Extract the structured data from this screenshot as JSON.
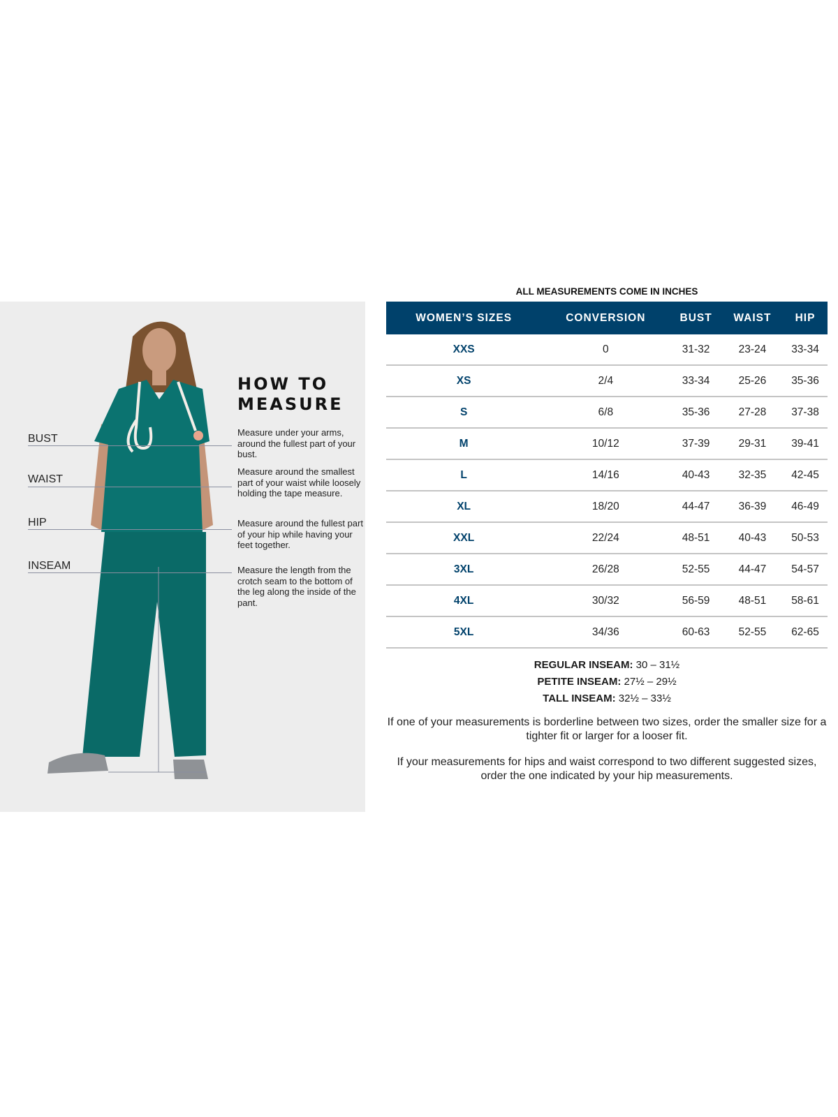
{
  "how_to_measure": {
    "title_line1": "HOW TO",
    "title_line2": "MEASURE",
    "items": [
      {
        "label": "BUST",
        "description": "Measure under your arms, around the fullest part of your bust."
      },
      {
        "label": "WAIST",
        "description": "Measure around the smallest part of your waist while loosely holding the tape measure."
      },
      {
        "label": "HIP",
        "description": "Measure around the fullest part of your hip while having your feet together."
      },
      {
        "label": "INSEAM",
        "description": "Measure the length from the crotch seam to the bottom of the leg along the inside of the pant."
      }
    ]
  },
  "size_chart": {
    "units_note": "ALL MEASUREMENTS COME IN INCHES",
    "headers": [
      "WOMEN’S SIZES",
      "CONVERSION",
      "BUST",
      "WAIST",
      "HIP"
    ],
    "rows": [
      [
        "XXS",
        "0",
        "31-32",
        "23-24",
        "33-34"
      ],
      [
        "XS",
        "2/4",
        "33-34",
        "25-26",
        "35-36"
      ],
      [
        "S",
        "6/8",
        "35-36",
        "27-28",
        "37-38"
      ],
      [
        "M",
        "10/12",
        "37-39",
        "29-31",
        "39-41"
      ],
      [
        "L",
        "14/16",
        "40-43",
        "32-35",
        "42-45"
      ],
      [
        "XL",
        "18/20",
        "44-47",
        "36-39",
        "46-49"
      ],
      [
        "XXL",
        "22/24",
        "48-51",
        "40-43",
        "50-53"
      ],
      [
        "3XL",
        "26/28",
        "52-55",
        "44-47",
        "54-57"
      ],
      [
        "4XL",
        "30/32",
        "56-59",
        "48-51",
        "58-61"
      ],
      [
        "5XL",
        "34/36",
        "60-63",
        "52-55",
        "62-65"
      ]
    ]
  },
  "inseams": [
    {
      "label": "REGULAR INSEAM:",
      "value": "30  – 31½"
    },
    {
      "label": "PETITE INSEAM:",
      "value": "27½ – 29½"
    },
    {
      "label": "TALL INSEAM:",
      "value": "32½ – 33½"
    }
  ],
  "notes": [
    "If one of your measurements is borderline between two sizes, order the smaller size for a tighter fit or larger for a looser fit.",
    "If your measurements for hips and waist correspond to two different suggested sizes, order the one indicated by your hip measurements."
  ],
  "colors": {
    "header_bg": "#00416b",
    "scrubs": "#0b7370",
    "panel_bg": "#ededed"
  }
}
